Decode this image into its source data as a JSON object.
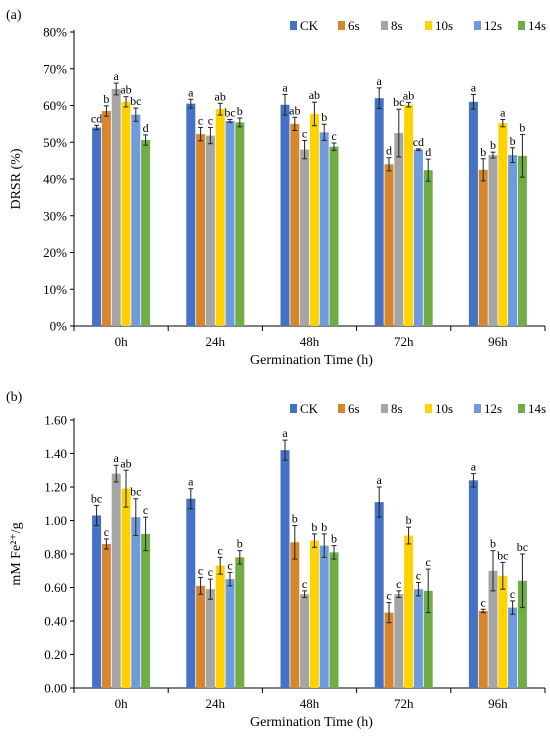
{
  "series_names": [
    "CK",
    "6s",
    "8s",
    "10s",
    "12s",
    "14s"
  ],
  "series_colors": [
    "#4472C4",
    "#D6862C",
    "#A5A5A5",
    "#FFD300",
    "#6E9BE0",
    "#70AD47"
  ],
  "chart_data": [
    {
      "panel_label": "(a)",
      "type": "bar",
      "title": "",
      "xlabel": "Germination Time (h)",
      "ylabel": "DRSR (%)",
      "categories": [
        "0h",
        "24h",
        "48h",
        "72h",
        "96h"
      ],
      "ylim": [
        0,
        80
      ],
      "yticks": [
        "0%",
        "10%",
        "20%",
        "30%",
        "40%",
        "50%",
        "60%",
        "70%",
        "80%"
      ],
      "tick_values": [
        0,
        10,
        20,
        30,
        40,
        50,
        60,
        70,
        80
      ],
      "grid": false,
      "legend": "top-right",
      "series": [
        {
          "name": "CK",
          "values": [
            54,
            60.5,
            60.2,
            62,
            61
          ],
          "errors": [
            0.6,
            1.2,
            2.8,
            2.8,
            2.0
          ],
          "letters": [
            "cd",
            "a",
            "a",
            "a",
            "a"
          ]
        },
        {
          "name": "6s",
          "values": [
            58.5,
            52.2,
            55,
            44,
            42.5
          ],
          "errors": [
            1.4,
            1.8,
            1.8,
            1.8,
            3.0
          ],
          "letters": [
            "b",
            "c",
            "ab",
            "d",
            "b"
          ]
        },
        {
          "name": "8s",
          "values": [
            64.5,
            51.8,
            48,
            52.5,
            46.5
          ],
          "errors": [
            1.6,
            2.2,
            2.5,
            6.5,
            0.8
          ],
          "letters": [
            "a",
            "c",
            "c",
            "bc",
            "b"
          ]
        },
        {
          "name": "10s",
          "values": [
            61,
            59,
            57.7,
            60.2,
            55.2
          ],
          "errors": [
            1.4,
            1.6,
            3.2,
            0.6,
            1.0
          ],
          "letters": [
            "ab",
            "ab",
            "ab",
            "ab",
            "a"
          ]
        },
        {
          "name": "12s",
          "values": [
            57.5,
            55.8,
            52.7,
            48,
            46.5
          ],
          "errors": [
            1.8,
            0.4,
            2.2,
            0.2,
            2.0
          ],
          "letters": [
            "bc",
            "bc",
            "b",
            "cd",
            "b"
          ]
        },
        {
          "name": "14s",
          "values": [
            50.6,
            55.4,
            48.8,
            42.4,
            46.3
          ],
          "errors": [
            1.4,
            1.2,
            1.0,
            3.0,
            5.8
          ],
          "letters": [
            "d",
            "b",
            "c",
            "d",
            "b"
          ]
        }
      ]
    },
    {
      "panel_label": "(b)",
      "type": "bar",
      "title": "",
      "xlabel": "Germination Time (h)",
      "ylabel": "mM Fe²⁺/g",
      "categories": [
        "0h",
        "24h",
        "48h",
        "72h",
        "96h"
      ],
      "ylim": [
        0,
        1.6
      ],
      "yticks": [
        "0.00",
        "0.20",
        "0.40",
        "0.60",
        "0.80",
        "1.00",
        "1.20",
        "1.40",
        "1.60"
      ],
      "tick_values": [
        0,
        0.2,
        0.4,
        0.6,
        0.8,
        1.0,
        1.2,
        1.4,
        1.6
      ],
      "grid": false,
      "legend": "top-right",
      "series": [
        {
          "name": "CK",
          "values": [
            1.03,
            1.13,
            1.42,
            1.11,
            1.24
          ],
          "errors": [
            0.06,
            0.06,
            0.06,
            0.09,
            0.04
          ],
          "letters": [
            "bc",
            "a",
            "a",
            "a",
            "a"
          ]
        },
        {
          "name": "6s",
          "values": [
            0.86,
            0.61,
            0.87,
            0.45,
            0.46
          ],
          "errors": [
            0.03,
            0.05,
            0.1,
            0.06,
            0.01
          ],
          "letters": [
            "c",
            "c",
            "b",
            "c",
            "c"
          ]
        },
        {
          "name": "8s",
          "values": [
            1.28,
            0.59,
            0.56,
            0.56,
            0.7
          ],
          "errors": [
            0.05,
            0.06,
            0.02,
            0.02,
            0.12
          ],
          "letters": [
            "a",
            "c",
            "c",
            "c",
            "b"
          ]
        },
        {
          "name": "10s",
          "values": [
            1.19,
            0.73,
            0.88,
            0.91,
            0.67
          ],
          "errors": [
            0.11,
            0.05,
            0.04,
            0.05,
            0.08
          ],
          "letters": [
            "ab",
            "c",
            "b",
            "b",
            "bc"
          ]
        },
        {
          "name": "12s",
          "values": [
            1.02,
            0.65,
            0.85,
            0.59,
            0.48
          ],
          "errors": [
            0.11,
            0.04,
            0.07,
            0.04,
            0.04
          ],
          "letters": [
            "bc",
            "c",
            "b",
            "c",
            "c"
          ]
        },
        {
          "name": "14s",
          "values": [
            0.92,
            0.78,
            0.81,
            0.58,
            0.64
          ],
          "errors": [
            0.1,
            0.04,
            0.04,
            0.13,
            0.16
          ],
          "letters": [
            "c",
            "b",
            "b",
            "c",
            "bc"
          ]
        }
      ]
    }
  ]
}
